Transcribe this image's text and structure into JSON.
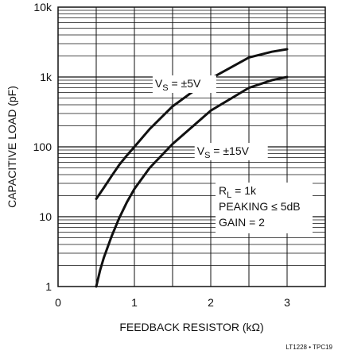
{
  "chart_data": {
    "type": "line",
    "xlabel": "FEEDBACK RESISTOR (kΩ)",
    "ylabel": "CAPACITIVE LOAD (pF)",
    "xlim": [
      0,
      3.5
    ],
    "ylim": [
      1,
      10000
    ],
    "yscale": "log",
    "grid": true,
    "x_ticks": [
      0,
      1,
      2,
      3
    ],
    "x_tick_labels": [
      "0",
      "1",
      "2",
      "3"
    ],
    "y_ticks": [
      1,
      10,
      100,
      1000,
      10000
    ],
    "y_tick_labels": [
      "1",
      "10",
      "100",
      "1k",
      "10k"
    ],
    "series": [
      {
        "label_main": "V",
        "label_sub": "S",
        "label_rest": " = ±5V",
        "x": [
          0.5,
          0.6,
          0.7,
          0.8,
          0.9,
          1.0,
          1.2,
          1.5,
          2.0,
          2.5,
          2.8,
          3.0
        ],
        "y": [
          18,
          26,
          38,
          55,
          75,
          100,
          180,
          380,
          950,
          1900,
          2300,
          2500
        ]
      },
      {
        "label_main": "V",
        "label_sub": "S",
        "label_rest": " = ±15V",
        "x": [
          0.5,
          0.55,
          0.6,
          0.7,
          0.8,
          0.9,
          1.0,
          1.2,
          1.5,
          2.0,
          2.5,
          2.8,
          3.0
        ],
        "y": [
          1,
          1.7,
          2.6,
          5.2,
          9.5,
          16,
          25,
          50,
          110,
          330,
          700,
          900,
          1000
        ]
      }
    ],
    "annotations": [
      [
        "R",
        "L",
        " = 1k"
      ],
      [
        "PEAKING ≤ 5dB",
        "",
        ""
      ],
      [
        "GAIN = 2",
        "",
        ""
      ]
    ],
    "footer": "LT1228 • TPC19"
  }
}
